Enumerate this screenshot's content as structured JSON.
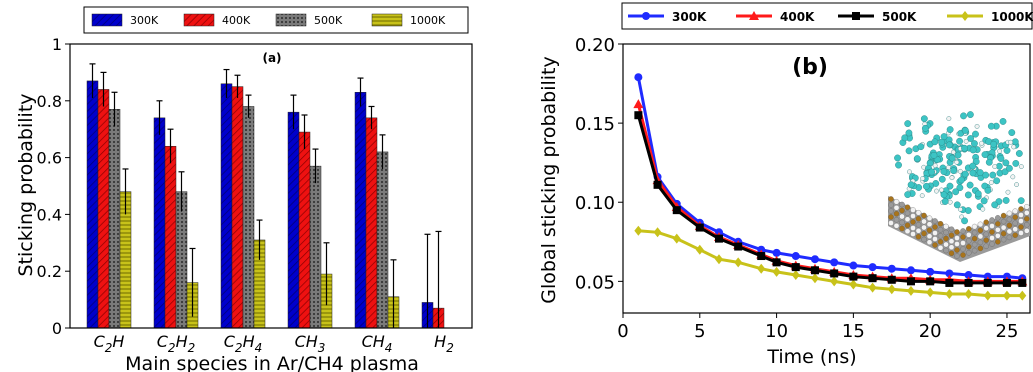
{
  "chart_data": [
    {
      "type": "bar",
      "panel_label": "(a)",
      "xlabel": "Main species in Ar/CH4 plasma",
      "ylabel": "Sticking probability",
      "ylim": [
        0,
        1
      ],
      "yticks": [
        "0",
        "0.2",
        "0.4",
        "0.6",
        "0.8",
        "1"
      ],
      "categories": [
        "C2H",
        "C2H2",
        "C2H4",
        "CH3",
        "CH4",
        "H2"
      ],
      "category_labels": [
        {
          "main": "C",
          "sub": "2",
          "tail": "H",
          "tail_sub": ""
        },
        {
          "main": "C",
          "sub": "2",
          "tail": "H",
          "tail_sub": "2"
        },
        {
          "main": "C",
          "sub": "2",
          "tail": "H",
          "tail_sub": "4"
        },
        {
          "main": "C",
          "sub": "",
          "tail": "H",
          "tail_sub": "3"
        },
        {
          "main": "C",
          "sub": "",
          "tail": "H",
          "tail_sub": "4"
        },
        {
          "main": "H",
          "sub": "2",
          "tail": "",
          "tail_sub": ""
        }
      ],
      "legend_position": "top",
      "series": [
        {
          "name": "300K",
          "color": "#0000cc",
          "pattern": "diag-blue",
          "values": [
            0.87,
            0.74,
            0.86,
            0.76,
            0.83,
            0.09
          ],
          "errors": [
            0.06,
            0.06,
            0.05,
            0.06,
            0.05,
            0.24
          ]
        },
        {
          "name": "400K",
          "color": "#ee1111",
          "pattern": "diag-red",
          "values": [
            0.84,
            0.64,
            0.85,
            0.69,
            0.74,
            0.07
          ],
          "errors": [
            0.06,
            0.06,
            0.04,
            0.06,
            0.04,
            0.27
          ]
        },
        {
          "name": "500K",
          "color": "#777777",
          "pattern": "dots-grey",
          "values": [
            0.77,
            0.48,
            0.78,
            0.57,
            0.62,
            0.0
          ],
          "errors": [
            0.06,
            0.07,
            0.04,
            0.06,
            0.06,
            0.0
          ]
        },
        {
          "name": "1000K",
          "color": "#c8c21a",
          "pattern": "hlines-yellow",
          "values": [
            0.48,
            0.16,
            0.31,
            0.19,
            0.11,
            0.0
          ],
          "errors": [
            0.08,
            0.12,
            0.07,
            0.11,
            0.13,
            0.0
          ]
        }
      ]
    },
    {
      "type": "line",
      "panel_label": "(b)",
      "xlabel": "Time (ns)",
      "ylabel": "Global sticking probability",
      "xlim": [
        0,
        26.5
      ],
      "ylim": [
        0.03,
        0.2
      ],
      "xticks": [
        0,
        5,
        10,
        15,
        20,
        25
      ],
      "yticks": [
        0.05,
        0.1,
        0.15,
        0.2
      ],
      "ytick_labels": [
        "0.05",
        "0.10",
        "0.15",
        "0.20"
      ],
      "legend_position": "top",
      "x": [
        1,
        2.25,
        3.5,
        5,
        6.25,
        7.5,
        9,
        10,
        11.25,
        12.5,
        13.75,
        15,
        16.25,
        17.5,
        18.75,
        20,
        21.25,
        22.5,
        23.75,
        25,
        26
      ],
      "series": [
        {
          "name": "300K",
          "color": "#1f2bff",
          "marker": "circle",
          "values": [
            0.179,
            0.116,
            0.099,
            0.087,
            0.081,
            0.075,
            0.07,
            0.068,
            0.066,
            0.064,
            0.062,
            0.06,
            0.059,
            0.058,
            0.057,
            0.056,
            0.055,
            0.054,
            0.053,
            0.053,
            0.052
          ]
        },
        {
          "name": "400K",
          "color": "#ff1a1a",
          "marker": "triangle",
          "values": [
            0.162,
            0.114,
            0.097,
            0.085,
            0.078,
            0.073,
            0.067,
            0.063,
            0.06,
            0.058,
            0.056,
            0.054,
            0.053,
            0.052,
            0.052,
            0.051,
            0.051,
            0.05,
            0.05,
            0.05,
            0.05
          ]
        },
        {
          "name": "500K",
          "color": "#000000",
          "marker": "square",
          "values": [
            0.155,
            0.111,
            0.095,
            0.084,
            0.077,
            0.072,
            0.066,
            0.062,
            0.059,
            0.057,
            0.055,
            0.053,
            0.052,
            0.051,
            0.05,
            0.05,
            0.049,
            0.049,
            0.049,
            0.049,
            0.049
          ]
        },
        {
          "name": "1000K",
          "color": "#c8c21a",
          "marker": "diamond",
          "values": [
            0.082,
            0.081,
            0.077,
            0.07,
            0.064,
            0.062,
            0.058,
            0.056,
            0.054,
            0.052,
            0.05,
            0.048,
            0.046,
            0.045,
            0.044,
            0.043,
            0.042,
            0.042,
            0.041,
            0.041,
            0.041
          ]
        }
      ]
    }
  ],
  "inset": {
    "icon": "molecular-surface-inset",
    "colors": {
      "cyan": "#3cc4c4",
      "grey": "#9a9a9a",
      "brown": "#a8741c",
      "white": "#f2f2f2"
    }
  }
}
